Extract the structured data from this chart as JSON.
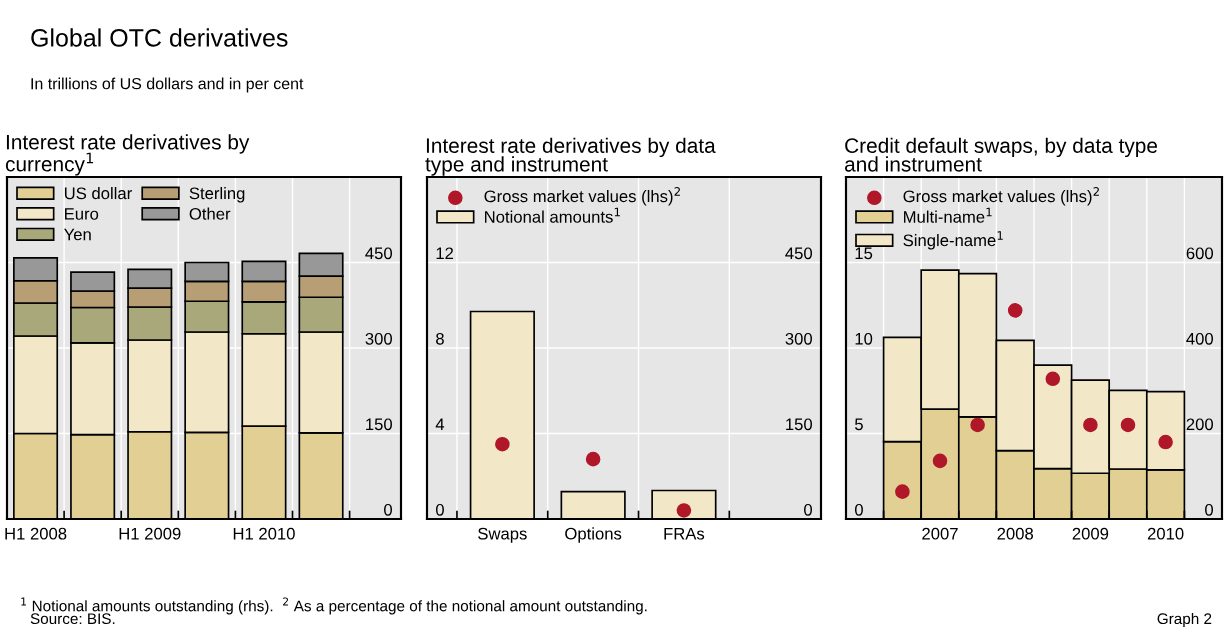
{
  "chart_data": [
    {
      "type": "bar",
      "title": "Interest rate derivatives by\ncurrency$^{1}$",
      "stacked": true,
      "grid": true,
      "legend": "top left",
      "annotations": [
        "Global OTC derivatives",
        "In trillions of US dollars and in per cent",
        "$^{1}$ Notional amounts outstanding (rhs).  $^{2}$ As a percentage of the notional amount outstanding.",
        "Source: BIS.",
        "Graph 2"
      ],
      "categories": [
        "H1 2008",
        null,
        "H1 2009",
        null,
        "H1 2010",
        null
      ],
      "y2lim": [
        0,
        600
      ],
      "y2ticks": [
        0,
        150,
        300,
        450
      ],
      "series": [
        {
          "name": "US dollar",
          "color": "#e2cf94",
          "axis": "y2",
          "values": [
            150,
            148,
            153,
            152,
            163,
            151
          ]
        },
        {
          "name": "Euro",
          "color": "#f2e8c8",
          "axis": "y2",
          "values": [
            171,
            161,
            161,
            176,
            162,
            177
          ]
        },
        {
          "name": "Yen",
          "color": "#a8a87a",
          "axis": "y2",
          "values": [
            58,
            62,
            58,
            54,
            56,
            61
          ]
        },
        {
          "name": "Sterling",
          "color": "#b89e74",
          "axis": "y2",
          "values": [
            39,
            29,
            33,
            35,
            36,
            37
          ]
        },
        {
          "name": "Other",
          "color": "#989898",
          "axis": "y2",
          "values": [
            40,
            33,
            33,
            33,
            35,
            40
          ]
        }
      ]
    },
    {
      "type": "bar",
      "title": "Interest rate derivatives by data\ntype and instrument",
      "grid": true,
      "legend": "top left",
      "marker": "circle",
      "categories": [
        "Swaps",
        "Options",
        "FRAs"
      ],
      "ylim": [
        0,
        16
      ],
      "yticks": [
        0,
        4,
        8,
        12
      ],
      "y2lim": [
        0,
        600
      ],
      "y2ticks": [
        0,
        150,
        300,
        450
      ],
      "series": [
        {
          "name": "Gross market values (lhs)$^{2}$",
          "type": "scatter",
          "color": "#b0182a",
          "values": [
            3.5,
            2.8,
            0.4
          ]
        },
        {
          "name": "Notional amounts$^{1}$",
          "color": "#f2e8c8",
          "axis": "y2",
          "values": [
            364,
            48,
            50
          ]
        }
      ]
    },
    {
      "type": "bar",
      "title": "Credit default swaps, by data type\nand instrument",
      "stacked": true,
      "grid": true,
      "legend": "top left",
      "marker": "circle",
      "categories": [
        null,
        "2007",
        null,
        "2008",
        null,
        "2009",
        null,
        "2010"
      ],
      "ylim": [
        0,
        20
      ],
      "yticks": [
        0,
        5,
        10,
        15
      ],
      "y2lim": [
        0,
        800
      ],
      "y2ticks": [
        0,
        200,
        400,
        600
      ],
      "series": [
        {
          "name": "Gross market values (lhs)$^{2}$",
          "type": "scatter",
          "color": "#b0182a",
          "values": [
            1.6,
            3.4,
            5.5,
            12.2,
            8.2,
            5.5,
            5.5,
            4.5
          ]
        },
        {
          "name": "Multi-name$^{1}$",
          "color": "#e2cf94",
          "axis": "y2",
          "values": [
            181,
            257,
            239,
            160,
            118,
            107,
            117,
            115
          ]
        },
        {
          "name": "Single-name$^{1}$",
          "color": "#f2e8c8",
          "axis": "y2",
          "values": [
            244,
            325,
            335,
            258,
            242,
            218,
            184,
            183
          ]
        }
      ]
    }
  ]
}
